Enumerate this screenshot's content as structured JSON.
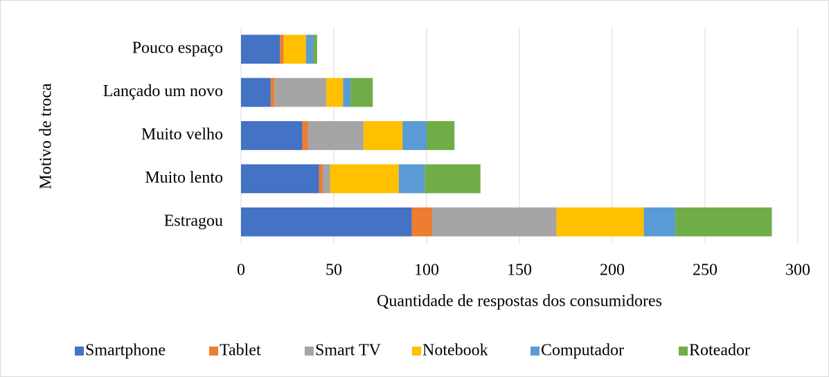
{
  "chart_data": {
    "type": "stacked-bar-horizontal",
    "x_label": "Quantidade de respostas dos consumidores",
    "y_label": "Motivo de troca",
    "categories": [
      "Pouco espaço",
      "Lançado um novo",
      "Muito velho",
      "Muito lento",
      "Estragou"
    ],
    "series": [
      {
        "name": "Smartphone",
        "color": "#4472c4",
        "values": [
          21,
          16,
          33,
          42,
          92
        ]
      },
      {
        "name": "Tablet",
        "color": "#ed7d31",
        "values": [
          2,
          2,
          3,
          2,
          11
        ]
      },
      {
        "name": "Smart TV",
        "color": "#a5a5a5",
        "values": [
          0,
          28,
          30,
          4,
          67
        ]
      },
      {
        "name": "Notebook",
        "color": "#ffc000",
        "values": [
          12,
          9,
          21,
          37,
          47
        ]
      },
      {
        "name": "Computador",
        "color": "#5b9bd5",
        "values": [
          4,
          4,
          13,
          14,
          17
        ]
      },
      {
        "name": "Roteador",
        "color": "#70ad47",
        "values": [
          2,
          12,
          15,
          30,
          52
        ]
      }
    ],
    "xlim": [
      0,
      300
    ],
    "xticks": [
      0,
      50,
      100,
      150,
      200,
      250,
      300
    ],
    "grid": true,
    "legend": "bottom"
  }
}
